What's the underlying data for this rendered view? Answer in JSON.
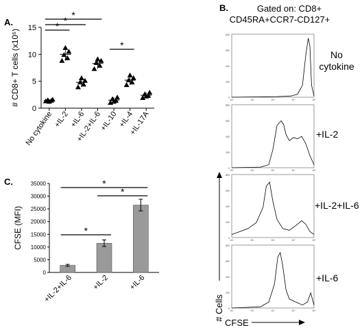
{
  "panelA": {
    "letter": "A.",
    "chart_data": {
      "type": "scatter",
      "ylabel": "# CD8+ T cells (x10⁵)",
      "ylim": [
        0,
        15
      ],
      "yticks": [
        "0",
        "5",
        "10",
        "15"
      ],
      "categories": [
        "No cytokine",
        "+IL-2",
        "+IL-6",
        "+IL-2+IL-6",
        "+IL-10",
        "+IL-4",
        "+IL-17A"
      ],
      "points": [
        [
          1.3,
          1.4,
          1.5,
          1.6,
          1.2
        ],
        [
          8.8,
          9.3,
          9.9,
          10.5,
          11.2
        ],
        [
          3.9,
          4.4,
          4.8,
          5.1,
          5.6
        ],
        [
          7.3,
          7.9,
          8.4,
          8.8,
          9.1
        ],
        [
          1.0,
          1.4,
          1.7,
          2.0,
          1.2
        ],
        [
          4.3,
          4.8,
          5.2,
          5.6,
          6.1
        ],
        [
          1.9,
          2.3,
          2.6,
          2.9,
          2.2
        ]
      ],
      "means": [
        1.4,
        10.0,
        4.8,
        8.3,
        1.5,
        5.2,
        2.4
      ],
      "significance": [
        {
          "from": "No cytokine",
          "to": "+IL-2",
          "label": "*"
        },
        {
          "from": "No cytokine",
          "to": "+IL-6",
          "label": "*"
        },
        {
          "from": "No cytokine",
          "to": "+IL-2+IL-6",
          "label": "*"
        },
        {
          "from": "+IL-10",
          "to": "+IL-4",
          "label": "*"
        }
      ]
    }
  },
  "panelB": {
    "letter": "B.",
    "title_line1": "Gated on: CD8+",
    "title_line2": "CD45RA+CCR7-CD127+",
    "ylabel": "# Cells",
    "xlabel": "CFSE",
    "chart_data": {
      "type": "line",
      "x_scale": "log",
      "x_ticks": [
        "10¹",
        "10²",
        "10³",
        "10⁴",
        "10⁵"
      ],
      "histograms": [
        {
          "label_line1": "No",
          "label_line2": "cytokine",
          "y_ticks": [
            "0",
            "200",
            "400",
            "600",
            "800"
          ]
        },
        {
          "label_line1": "+IL-2",
          "label_line2": "",
          "y_ticks": [
            "0",
            "200",
            "400",
            "600",
            "800"
          ]
        },
        {
          "label_line1": "+IL-2+IL-6",
          "label_line2": "",
          "y_ticks": [
            "0",
            "200",
            "400",
            "600",
            "800"
          ]
        },
        {
          "label_line1": "+IL-6",
          "label_line2": "",
          "y_ticks": [
            "0",
            "200",
            "400",
            "600",
            "800"
          ]
        }
      ]
    }
  },
  "panelC": {
    "letter": "C.",
    "chart_data": {
      "type": "bar",
      "ylabel": "CFSE (MFI)",
      "ylim": [
        0,
        35000
      ],
      "yticks": [
        "0",
        "5000",
        "10000",
        "15000",
        "20000",
        "25000",
        "30000",
        "35000"
      ],
      "categories": [
        "+IL-2+IL-6",
        "+IL-2",
        "+IL-6"
      ],
      "values": [
        2800,
        11500,
        26500
      ],
      "errors": [
        400,
        1300,
        2300
      ],
      "bar_color": "#9a9a9a",
      "significance": [
        {
          "from": "+IL-2+IL-6",
          "to": "+IL-2",
          "label": "*"
        },
        {
          "from": "+IL-2+IL-6",
          "to": "+IL-6",
          "label": "*"
        },
        {
          "from": "+IL-2",
          "to": "+IL-6",
          "label": "*"
        }
      ]
    }
  }
}
